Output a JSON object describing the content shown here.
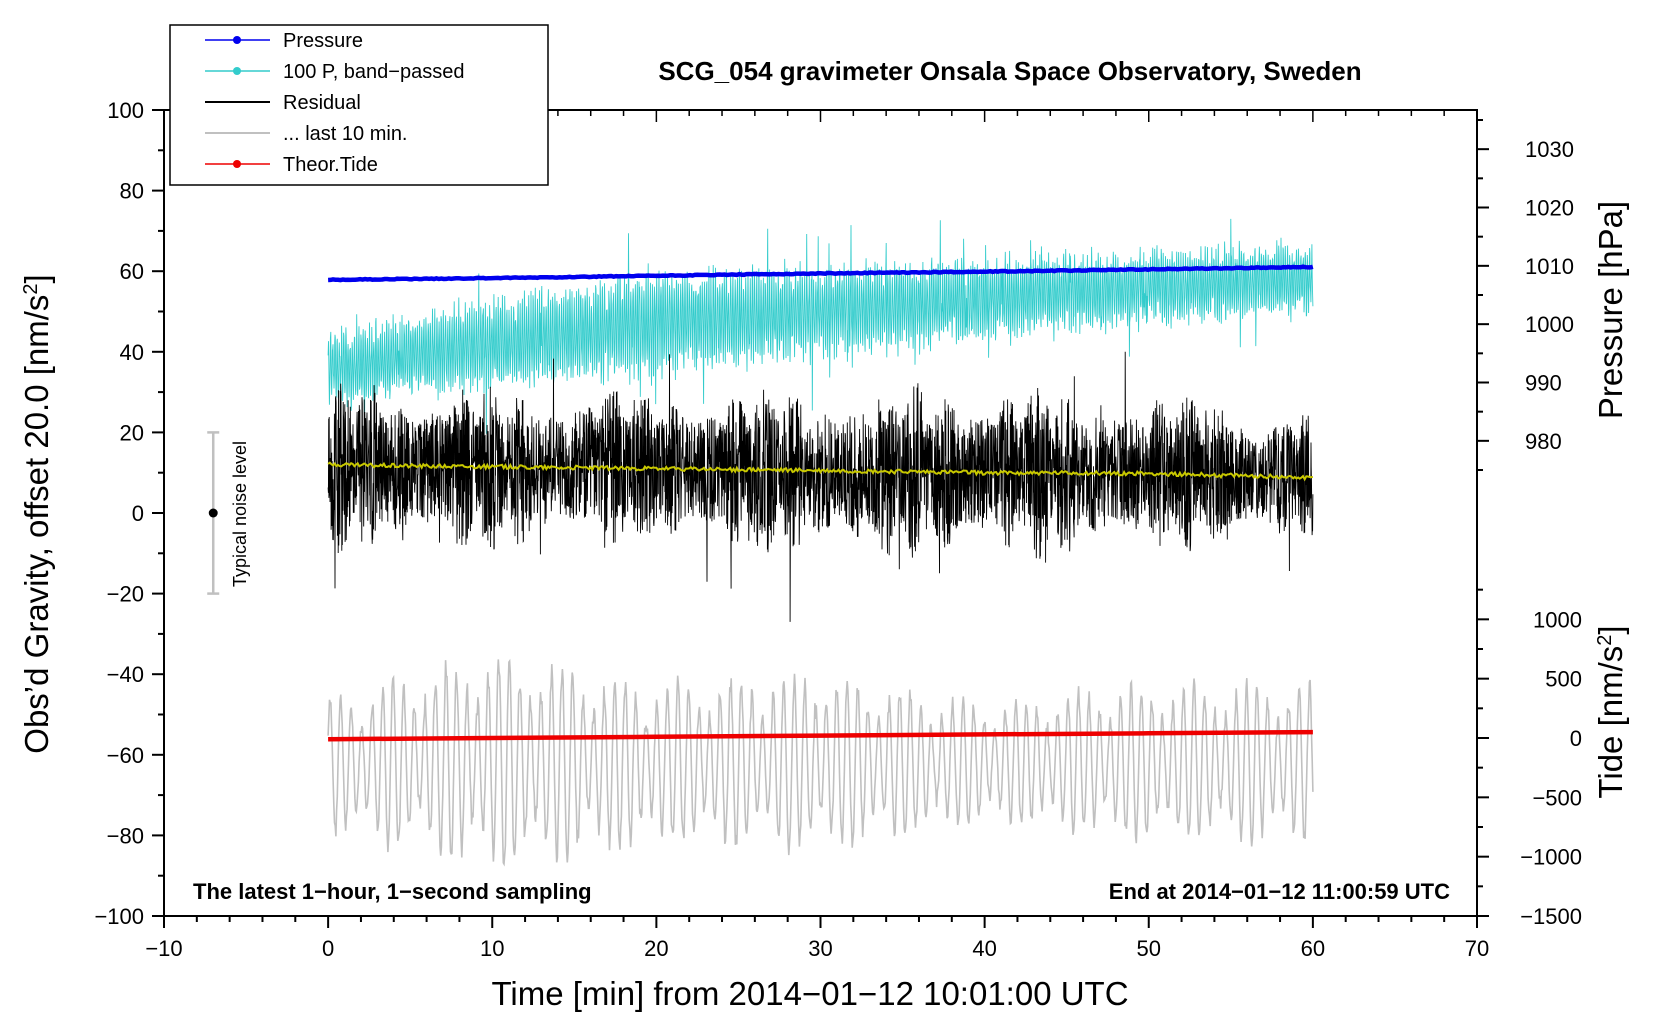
{
  "chart_data": {
    "type": "line",
    "title": "SCG_054 gravimeter Onsala Space Observatory, Sweden",
    "xlabel": "Time [min] from 2014−01−12 10:01:00 UTC",
    "ylabel_left_main": "Obs’d Gravity, offset 20.0",
    "ylabel_left_unit": "[nm/s",
    "ylabel_right_pressure": "Pressure [hPa]",
    "ylabel_right_tide_main": "Tide",
    "ylabel_right_tide_unit": "[nm/s",
    "unit_exponent": "2",
    "unit_close": "]",
    "xlim": [
      -10,
      70
    ],
    "ylim": [
      -100,
      100
    ],
    "pressure_lim": [
      975,
      1035
    ],
    "tide_lim": [
      -1500,
      1500
    ],
    "x_ticks": [
      -10,
      0,
      10,
      20,
      30,
      40,
      50,
      60,
      70
    ],
    "x_tick_labels": [
      "−10",
      "0",
      "10",
      "20",
      "30",
      "40",
      "50",
      "60",
      "70"
    ],
    "y_ticks": [
      -100,
      -80,
      -60,
      -40,
      -20,
      0,
      20,
      40,
      60,
      80,
      100
    ],
    "y_tick_labels": [
      "−100",
      "−80",
      "−60",
      "−40",
      "−20",
      "0",
      "20",
      "40",
      "60",
      "80",
      "100"
    ],
    "pressure_ticks": [
      980,
      990,
      1000,
      1010,
      1020,
      1030
    ],
    "pressure_tick_labels": [
      "980",
      "990",
      "1000",
      "1010",
      "1020",
      "1030"
    ],
    "tide_ticks": [
      -1500,
      -1000,
      -500,
      0,
      500,
      1000
    ],
    "tide_tick_labels": [
      "−1500",
      "−1000",
      "−500",
      "0",
      "500",
      "1000"
    ],
    "legend": [
      {
        "label": "Pressure",
        "color": "#0000ee",
        "marker": true
      },
      {
        "label": "100 P, band−passed",
        "color": "#33cccc",
        "marker": true
      },
      {
        "label": "Residual",
        "color": "#000000",
        "marker": false
      },
      {
        "label": "... last 10 min.",
        "color": "#c0c0c0",
        "marker": false
      },
      {
        "label": "Theor.Tide",
        "color": "#ee0000",
        "marker": true
      }
    ],
    "annotations": {
      "left": "The latest 1−hour, 1−second sampling",
      "right": "End at 2014−01−12 11:00:59 UTC",
      "noise": "Typical noise level"
    },
    "noise_bar": {
      "x": -7,
      "center": 0,
      "low": -20,
      "high": 20
    },
    "series": [
      {
        "name": "Pressure",
        "axis": "pressure",
        "color": "#0000ee",
        "x": [
          0,
          10,
          20,
          30,
          40,
          50,
          60
        ],
        "values": [
          1007.6,
          1007.9,
          1008.3,
          1008.7,
          1009.0,
          1009.4,
          1009.8
        ]
      },
      {
        "name": "100 P, band−passed",
        "axis": "gravity",
        "color": "#33cccc",
        "x": [
          0,
          10,
          20,
          30,
          40,
          50,
          60
        ],
        "center": [
          36,
          42,
          47,
          50,
          53,
          56,
          58
        ],
        "amplitude": [
          10,
          12,
          14,
          12,
          11,
          10,
          9
        ]
      },
      {
        "name": "Residual",
        "axis": "gravity",
        "color": "#000000",
        "x": [
          0,
          10,
          20,
          30,
          40,
          50,
          60
        ],
        "center": [
          11,
          11,
          11,
          10,
          10,
          10,
          9
        ],
        "amplitude": [
          18,
          18,
          17,
          18,
          19,
          17,
          15
        ]
      },
      {
        "name": "Residual mean",
        "axis": "gravity",
        "color": "#c8c800",
        "x": [
          0,
          10,
          20,
          30,
          40,
          50,
          60
        ],
        "values": [
          12,
          11.5,
          11,
          10.5,
          10,
          9.8,
          8.8
        ]
      },
      {
        "name": "... last 10 min.",
        "axis": "gravity",
        "color": "#c0c0c0",
        "x": [
          0,
          10,
          20,
          30,
          40,
          50,
          60
        ],
        "center": [
          -62,
          -62,
          -62,
          -62,
          -62,
          -62,
          -62
        ],
        "amplitude": [
          14,
          22,
          16,
          18,
          12,
          16,
          16
        ]
      },
      {
        "name": "Theor.Tide",
        "axis": "tide",
        "color": "#ee0000",
        "x": [
          0,
          10,
          20,
          30,
          40,
          50,
          60
        ],
        "values": [
          -10,
          0,
          10,
          20,
          30,
          40,
          50
        ]
      }
    ]
  }
}
